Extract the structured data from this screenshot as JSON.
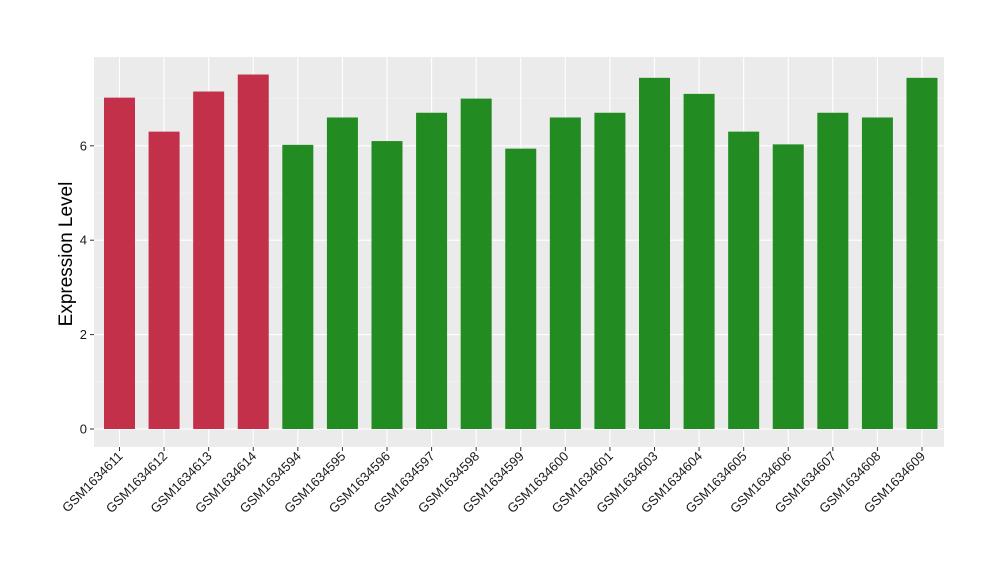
{
  "chart_data": {
    "type": "bar",
    "title": "",
    "xlabel": "",
    "ylabel": "Expression Level",
    "ylim": [
      0,
      7.9
    ],
    "yticks": [
      0,
      2,
      4,
      6
    ],
    "grid": true,
    "legend": "none",
    "colors": {
      "group_a": "#c3304a",
      "group_b": "#228b22",
      "panel_bg": "#ebebeb",
      "grid_major": "#ffffff"
    },
    "categories": [
      "GSM1634611",
      "GSM1634612",
      "GSM1634613",
      "GSM1634614",
      "GSM1634594",
      "GSM1634595",
      "GSM1634596",
      "GSM1634597",
      "GSM1634598",
      "GSM1634599",
      "GSM1634600",
      "GSM1634601",
      "GSM1634603",
      "GSM1634604",
      "GSM1634605",
      "GSM1634606",
      "GSM1634607",
      "GSM1634608",
      "GSM1634609"
    ],
    "values": [
      7.02,
      6.3,
      7.15,
      7.51,
      6.02,
      6.6,
      6.1,
      6.7,
      7.0,
      5.94,
      6.6,
      6.7,
      7.44,
      7.1,
      6.3,
      6.03,
      6.7,
      6.6,
      7.44
    ],
    "bar_groups": [
      "a",
      "a",
      "a",
      "a",
      "b",
      "b",
      "b",
      "b",
      "b",
      "b",
      "b",
      "b",
      "b",
      "b",
      "b",
      "b",
      "b",
      "b",
      "b"
    ]
  }
}
